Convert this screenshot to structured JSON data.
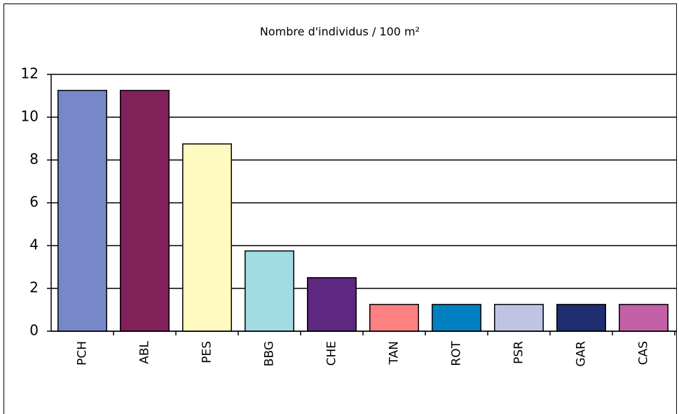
{
  "chart_data": {
    "type": "bar",
    "title": "Nombre d'individus / 100 m²",
    "categories": [
      "PCH",
      "ABL",
      "PES",
      "BBG",
      "CHE",
      "TAN",
      "ROT",
      "PSR",
      "GAR",
      "CAS"
    ],
    "values": [
      11.25,
      11.25,
      8.75,
      3.75,
      2.5,
      1.25,
      1.25,
      1.25,
      1.25,
      1.25
    ],
    "colors": [
      "#7788c8",
      "#82205a",
      "#fffac0",
      "#a0dce2",
      "#5e2880",
      "#ff8080",
      "#0080c0",
      "#c0c4e4",
      "#1e2e70",
      "#c460a8"
    ],
    "ylim": [
      0,
      12
    ],
    "yticks": [
      0,
      2,
      4,
      6,
      8,
      10,
      12
    ],
    "grid": true
  }
}
